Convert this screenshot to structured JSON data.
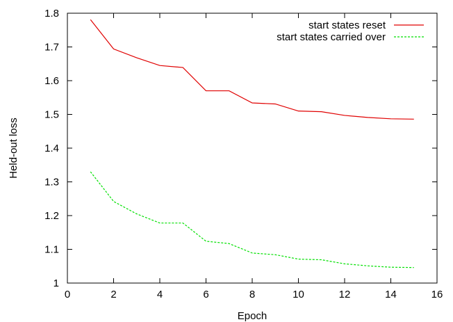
{
  "chart_data": {
    "type": "line",
    "title": "",
    "xlabel": "Epoch",
    "ylabel": "Held-out loss",
    "xlim": [
      0,
      16
    ],
    "ylim": [
      1,
      1.8
    ],
    "xticks": [
      0,
      2,
      4,
      6,
      8,
      10,
      12,
      14,
      16
    ],
    "yticks": [
      1,
      1.1,
      1.2,
      1.3,
      1.4,
      1.5,
      1.6,
      1.7,
      1.8
    ],
    "xtick_labels": [
      "0",
      "2",
      "4",
      "6",
      "8",
      "10",
      "12",
      "14",
      "16"
    ],
    "ytick_labels": [
      "1",
      "1.1",
      "1.2",
      "1.3",
      "1.4",
      "1.5",
      "1.6",
      "1.7",
      "1.8"
    ],
    "grid": false,
    "legend_position": "top-right",
    "x": [
      1,
      2,
      3,
      4,
      5,
      6,
      7,
      8,
      9,
      10,
      11,
      12,
      13,
      14,
      15
    ],
    "series": [
      {
        "name": "start states reset",
        "color": "#e00000",
        "style": "solid",
        "values": [
          1.781,
          1.694,
          1.668,
          1.645,
          1.639,
          1.57,
          1.57,
          1.534,
          1.531,
          1.51,
          1.508,
          1.497,
          1.491,
          1.487,
          1.486
        ]
      },
      {
        "name": "start states carried over",
        "color": "#00e000",
        "style": "dashed",
        "values": [
          1.33,
          1.242,
          1.205,
          1.178,
          1.178,
          1.124,
          1.117,
          1.089,
          1.084,
          1.071,
          1.069,
          1.057,
          1.051,
          1.047,
          1.046
        ]
      }
    ]
  }
}
